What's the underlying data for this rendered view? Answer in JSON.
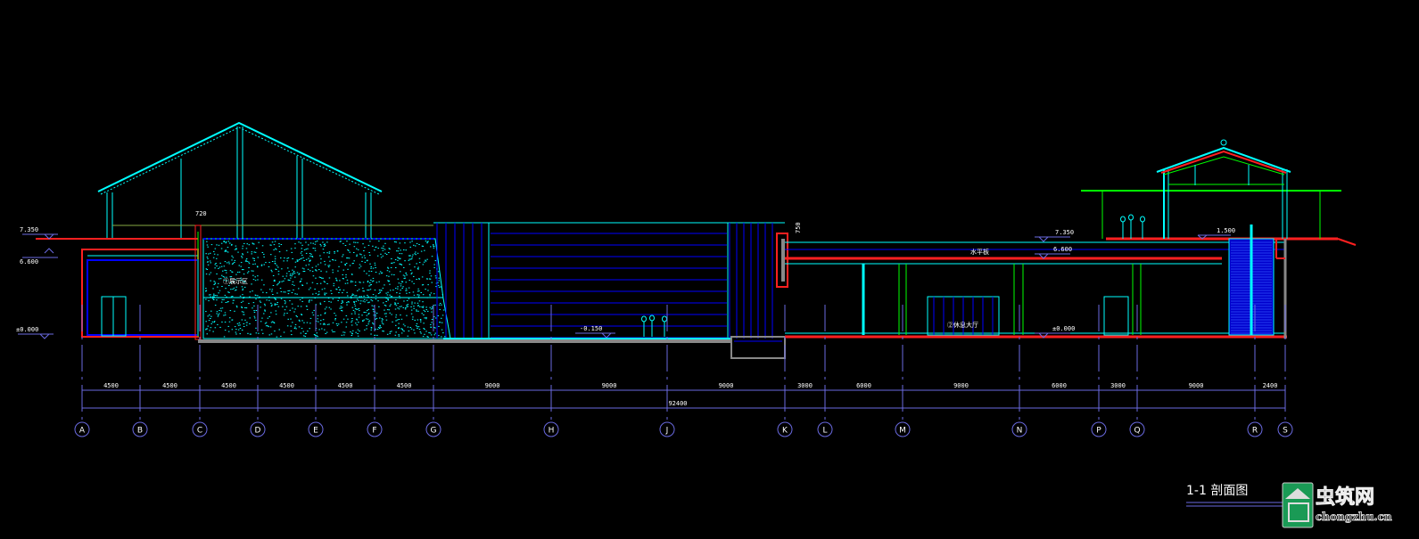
{
  "drawing": {
    "title": "1-1  剖面图",
    "levels": {
      "left_top": "7.350",
      "left_mid": "6.600",
      "left_base": "±0.000",
      "right_top": "7.350",
      "right_mid": "6.600",
      "right_base": "±0.000",
      "pool": "-0.150",
      "pavilion": "1.500",
      "wall_width": "720",
      "wall_top": "750"
    },
    "room_labels": [
      "①展示区",
      "水平板",
      "②休息大厅"
    ],
    "axes": [
      "A",
      "B",
      "C",
      "D",
      "E",
      "F",
      "G",
      "H",
      "J",
      "K",
      "L",
      "M",
      "N",
      "P",
      "Q",
      "R",
      "S"
    ],
    "spans": [
      "4500",
      "4500",
      "4500",
      "4500",
      "4500",
      "4500",
      "9000",
      "9000",
      "9000",
      "3000",
      "6000",
      "9000",
      "6000",
      "3000",
      "9000",
      "2400"
    ],
    "total_dimension": "92400"
  },
  "watermark": {
    "brand": "虫筑网",
    "domain": "chongzhu.cn"
  },
  "colors": {
    "background": "#000000",
    "structure": "#ff2020",
    "outline": "#00ffff",
    "glazing": "#0000ff",
    "green": "#00ff00",
    "dimension": "#6a6ae0"
  }
}
